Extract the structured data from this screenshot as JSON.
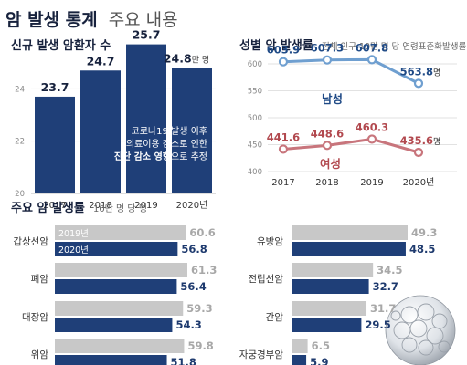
{
  "title": {
    "main": "암 발생 통계",
    "sub": "주요 내용"
  },
  "colors": {
    "navy": "#1f3f78",
    "navy_text": "#17223d",
    "grey_bar": "#c8c8c8",
    "blue_line": "#6f9fd0",
    "red_line": "#c8757c",
    "annotation_text": "#1f3f78"
  },
  "chart_data": [
    {
      "type": "bar",
      "title": "신규 발생 암환자 수",
      "categories": [
        "2017",
        "2018",
        "2019",
        "2020년"
      ],
      "values": [
        23.7,
        24.7,
        25.7,
        24.8
      ],
      "value_labels": [
        "23.7",
        "24.7",
        "25.7",
        "24.8"
      ],
      "unit_label": "만 명",
      "yticks": [
        "20",
        "22",
        "24"
      ],
      "ylim": [
        20,
        26
      ],
      "annotation": {
        "line1": "코로나19 발생 이후",
        "line2": "의료이용 감소로 인한",
        "bold": "진단 감소 영향",
        "rest": "으로 추정"
      }
    },
    {
      "type": "line",
      "title": "성별 암 발생률",
      "subtitle": "전체 인구 10만 명 당 연령표준화발생률",
      "categories": [
        "2017",
        "2018",
        "2019",
        "2020년"
      ],
      "yticks": [
        "400",
        "450",
        "500",
        "550",
        "600"
      ],
      "ylim": [
        390,
        640
      ],
      "series": [
        {
          "name": "남성",
          "values": [
            603.9,
            607.3,
            607.8,
            563.8
          ],
          "labels": [
            "603.9",
            "607.3",
            "607.8",
            "563.8"
          ],
          "last_unit": "명"
        },
        {
          "name": "여성",
          "values": [
            441.6,
            448.6,
            460.3,
            435.6
          ],
          "labels": [
            "441.6",
            "448.6",
            "460.3",
            "435.6"
          ],
          "last_unit": "명"
        }
      ]
    },
    {
      "type": "bar",
      "orientation": "horizontal",
      "title": "주요 암 발생률",
      "subtitle": "10만 명 당 명",
      "categories": [
        "갑상선암",
        "폐암",
        "대장암",
        "위암"
      ],
      "series": [
        {
          "name": "2019년",
          "values": [
            60.6,
            61.3,
            59.3,
            59.8
          ]
        },
        {
          "name": "2020년",
          "values": [
            56.8,
            56.4,
            54.3,
            51.8
          ]
        }
      ],
      "value_labels": {
        "2019": [
          "60.6",
          "61.3",
          "59.3",
          "59.8"
        ],
        "2020": [
          "56.8",
          "56.4",
          "54.3",
          "51.8"
        ]
      }
    },
    {
      "type": "bar",
      "orientation": "horizontal",
      "categories": [
        "유방암",
        "전립선암",
        "간암",
        "자궁경부암"
      ],
      "series": [
        {
          "name": "2019년",
          "values": [
            49.3,
            34.5,
            31.7,
            6.5
          ]
        },
        {
          "name": "2020년",
          "values": [
            48.5,
            32.7,
            29.5,
            5.9
          ]
        }
      ],
      "value_labels": {
        "2019": [
          "49.3",
          "34.5",
          "31.7",
          "6.5"
        ],
        "2020": [
          "48.5",
          "32.7",
          "29.5",
          "5.9"
        ]
      }
    }
  ]
}
